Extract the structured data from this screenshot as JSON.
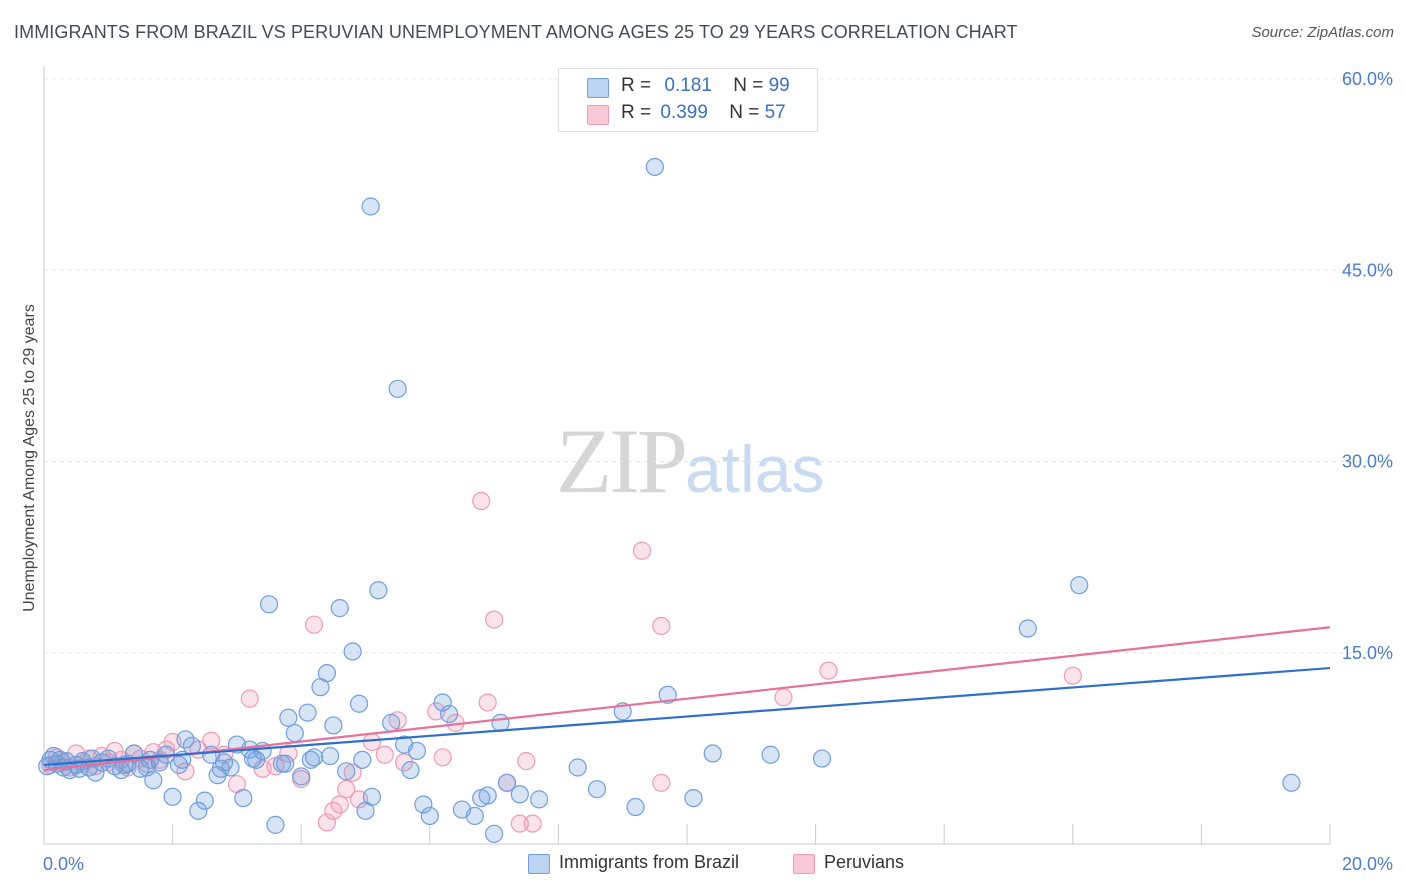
{
  "header": {
    "title": "IMMIGRANTS FROM BRAZIL VS PERUVIAN UNEMPLOYMENT AMONG AGES 25 TO 29 YEARS CORRELATION CHART",
    "source": "Source: ZipAtlas.com"
  },
  "watermark": {
    "zip": "ZIP",
    "atlas": "atlas"
  },
  "legend": {
    "rows": [
      {
        "r_label": "R =",
        "r_value": "0.181",
        "n_label": "N =",
        "n_value": "99"
      },
      {
        "r_label": "R =",
        "r_value": "0.399",
        "n_label": "N =",
        "n_value": "57"
      }
    ]
  },
  "bottom_legend": {
    "brazil": "Immigrants from Brazil",
    "peru": "Peruvians"
  },
  "chart_data": {
    "type": "scatter",
    "title": "IMMIGRANTS FROM BRAZIL VS PERUVIAN UNEMPLOYMENT AMONG AGES 25 TO 29 YEARS CORRELATION CHART",
    "xlabel": "",
    "ylabel": "Unemployment Among Ages 25 to 29 years",
    "xlim": [
      0,
      20
    ],
    "ylim": [
      0,
      60
    ],
    "x_tick_labels": [
      "0.0%",
      "20.0%"
    ],
    "y_ticks": [
      15,
      30,
      45,
      60
    ],
    "y_tick_labels": [
      "15.0%",
      "30.0%",
      "45.0%",
      "60.0%"
    ],
    "grid": true,
    "colors": {
      "brazil": "#6f9fdc",
      "peru": "#f09ab6",
      "brazil_line": "#2e6fcc",
      "peru_line": "#e8709a",
      "tick": "#4a7cc9"
    },
    "series": [
      {
        "name": "Immigrants from Brazil",
        "trend": {
          "x": [
            0,
            20
          ],
          "y": [
            6.2,
            13.8
          ]
        },
        "points": [
          [
            0.1,
            6.6
          ],
          [
            0.2,
            6.3
          ],
          [
            0.3,
            6.0
          ],
          [
            0.4,
            5.8
          ],
          [
            0.5,
            6.2
          ],
          [
            0.6,
            6.5
          ],
          [
            0.7,
            6.0
          ],
          [
            0.8,
            5.6
          ],
          [
            0.9,
            6.4
          ],
          [
            1.0,
            6.7
          ],
          [
            1.1,
            6.1
          ],
          [
            1.2,
            5.8
          ],
          [
            1.3,
            6.3
          ],
          [
            1.4,
            7.1
          ],
          [
            1.5,
            5.9
          ],
          [
            1.6,
            6.0
          ],
          [
            1.7,
            5.0
          ],
          [
            1.8,
            6.4
          ],
          [
            1.9,
            7.0
          ],
          [
            2.0,
            3.7
          ],
          [
            2.1,
            6.2
          ],
          [
            2.2,
            8.2
          ],
          [
            2.3,
            7.7
          ],
          [
            2.4,
            2.6
          ],
          [
            2.5,
            3.4
          ],
          [
            2.6,
            7.0
          ],
          [
            2.7,
            5.4
          ],
          [
            2.8,
            6.4
          ],
          [
            2.9,
            6.0
          ],
          [
            3.0,
            7.8
          ],
          [
            3.1,
            3.6
          ],
          [
            3.2,
            7.4
          ],
          [
            3.3,
            6.6
          ],
          [
            3.4,
            7.3
          ],
          [
            3.5,
            18.8
          ],
          [
            3.6,
            1.5
          ],
          [
            3.7,
            6.3
          ],
          [
            3.8,
            9.9
          ],
          [
            3.9,
            8.7
          ],
          [
            4.0,
            5.3
          ],
          [
            4.1,
            10.3
          ],
          [
            4.2,
            6.8
          ],
          [
            4.3,
            12.3
          ],
          [
            4.4,
            13.4
          ],
          [
            4.5,
            9.3
          ],
          [
            4.6,
            18.5
          ],
          [
            4.7,
            5.7
          ],
          [
            4.8,
            15.1
          ],
          [
            4.9,
            11.0
          ],
          [
            5.0,
            2.6
          ],
          [
            5.1,
            3.7
          ],
          [
            5.2,
            19.9
          ],
          [
            5.4,
            9.5
          ],
          [
            5.5,
            35.7
          ],
          [
            5.6,
            7.8
          ],
          [
            5.7,
            5.8
          ],
          [
            5.8,
            7.3
          ],
          [
            5.9,
            3.1
          ],
          [
            6.0,
            2.2
          ],
          [
            6.2,
            11.1
          ],
          [
            6.3,
            10.2
          ],
          [
            6.5,
            2.7
          ],
          [
            6.7,
            2.2
          ],
          [
            6.8,
            3.6
          ],
          [
            6.9,
            3.8
          ],
          [
            7.0,
            0.8
          ],
          [
            7.1,
            9.5
          ],
          [
            7.2,
            4.8
          ],
          [
            7.4,
            3.9
          ],
          [
            7.7,
            3.5
          ],
          [
            5.08,
            50.0
          ],
          [
            8.3,
            6.0
          ],
          [
            8.6,
            4.3
          ],
          [
            9.0,
            10.4
          ],
          [
            9.2,
            2.9
          ],
          [
            9.5,
            53.1
          ],
          [
            9.7,
            11.7
          ],
          [
            10.1,
            3.6
          ],
          [
            10.4,
            7.1
          ],
          [
            11.3,
            7.0
          ],
          [
            12.1,
            6.7
          ],
          [
            15.3,
            16.9
          ],
          [
            16.1,
            20.3
          ],
          [
            19.4,
            4.8
          ],
          [
            0.15,
            6.9
          ],
          [
            0.35,
            6.5
          ],
          [
            0.55,
            5.9
          ],
          [
            0.75,
            6.7
          ],
          [
            1.25,
            6.2
          ],
          [
            1.65,
            6.6
          ],
          [
            2.15,
            6.6
          ],
          [
            2.75,
            5.9
          ],
          [
            3.25,
            6.7
          ],
          [
            3.75,
            6.3
          ],
          [
            4.15,
            6.6
          ],
          [
            4.45,
            6.9
          ],
          [
            4.95,
            6.6
          ],
          [
            0.05,
            6.1
          ],
          [
            0.25,
            6.6
          ]
        ]
      },
      {
        "name": "Peruvians",
        "trend": {
          "x": [
            0,
            20
          ],
          "y": [
            5.8,
            17.0
          ]
        },
        "points": [
          [
            0.1,
            6.2
          ],
          [
            0.2,
            6.8
          ],
          [
            0.3,
            6.4
          ],
          [
            0.4,
            6.0
          ],
          [
            0.5,
            7.1
          ],
          [
            0.6,
            6.3
          ],
          [
            0.7,
            6.7
          ],
          [
            0.8,
            6.1
          ],
          [
            0.9,
            6.9
          ],
          [
            1.0,
            6.4
          ],
          [
            1.1,
            7.3
          ],
          [
            1.2,
            6.6
          ],
          [
            1.3,
            6.0
          ],
          [
            1.4,
            7.1
          ],
          [
            1.5,
            6.7
          ],
          [
            1.6,
            6.3
          ],
          [
            1.7,
            7.2
          ],
          [
            1.8,
            6.6
          ],
          [
            1.9,
            7.4
          ],
          [
            2.0,
            8.0
          ],
          [
            2.2,
            5.7
          ],
          [
            2.4,
            7.4
          ],
          [
            2.6,
            8.1
          ],
          [
            2.8,
            7.0
          ],
          [
            3.0,
            4.7
          ],
          [
            3.2,
            11.4
          ],
          [
            3.4,
            5.9
          ],
          [
            3.6,
            6.1
          ],
          [
            3.8,
            7.1
          ],
          [
            4.0,
            5.1
          ],
          [
            4.2,
            17.2
          ],
          [
            4.4,
            1.7
          ],
          [
            4.5,
            2.6
          ],
          [
            4.6,
            3.1
          ],
          [
            4.7,
            4.3
          ],
          [
            4.8,
            5.6
          ],
          [
            4.9,
            3.5
          ],
          [
            5.1,
            8.0
          ],
          [
            5.3,
            7.0
          ],
          [
            5.5,
            9.7
          ],
          [
            5.6,
            6.4
          ],
          [
            6.2,
            6.8
          ],
          [
            6.4,
            9.5
          ],
          [
            6.9,
            11.1
          ],
          [
            7.0,
            17.6
          ],
          [
            7.2,
            4.8
          ],
          [
            7.5,
            6.5
          ],
          [
            7.6,
            1.6
          ],
          [
            7.4,
            1.6
          ],
          [
            6.8,
            26.9
          ],
          [
            9.3,
            23.0
          ],
          [
            9.6,
            17.1
          ],
          [
            9.6,
            4.8
          ],
          [
            11.5,
            11.5
          ],
          [
            12.2,
            13.6
          ],
          [
            16.0,
            13.2
          ],
          [
            6.1,
            10.4
          ]
        ]
      }
    ]
  }
}
